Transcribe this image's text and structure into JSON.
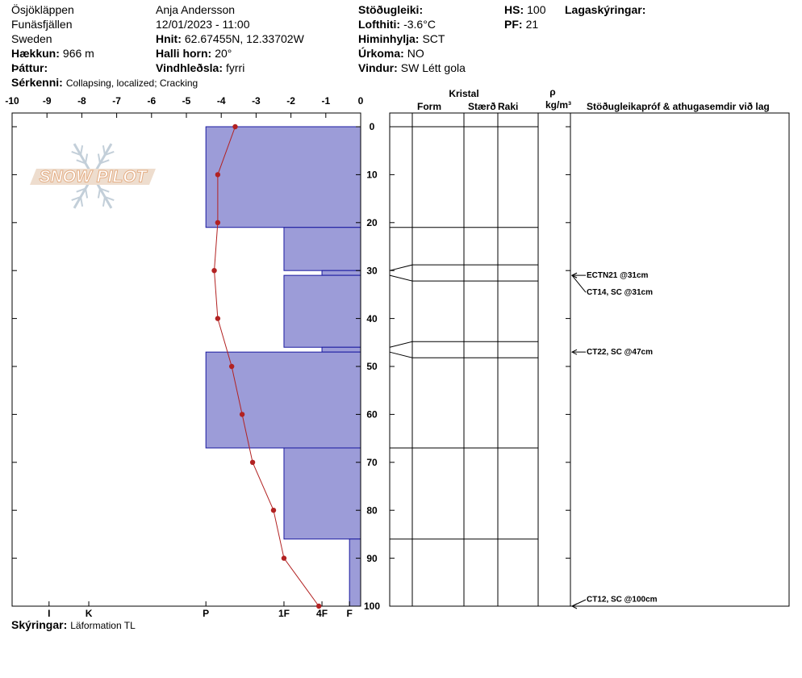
{
  "header": {
    "columns": [
      [
        {
          "value": "Ösjökläppen"
        },
        {
          "value": "Funäsfjällen"
        },
        {
          "value": "Sweden"
        },
        {
          "label": "Hækkun:",
          "value": "966 m"
        },
        {
          "label": "Þáttur:"
        }
      ],
      [
        {
          "value": "Anja Andersson"
        },
        {
          "value": "12/01/2023 - 11:00"
        },
        {
          "label": "Hnit:",
          "value": "62.67455N, 12.33702W"
        },
        {
          "label": "Halli horn:",
          "value": "20°"
        },
        {
          "label": "Vindhleðsla:",
          "value": "fyrri"
        }
      ],
      [
        {
          "label": "Stöðugleiki:"
        },
        {
          "label": "Lofthiti:",
          "value": "-3.6°C"
        },
        {
          "label": "Himinhylja:",
          "value": "SCT"
        },
        {
          "label": "Úrkoma:",
          "value": "NO"
        },
        {
          "label": "Vindur:",
          "value": "SW Létt gola"
        }
      ],
      [
        {
          "label": "HS:",
          "value": "100"
        },
        {
          "label": "PF:",
          "value": "21"
        }
      ],
      [
        {
          "label": "Lagaskýringar:"
        }
      ]
    ],
    "notes": {
      "label": "Sérkenni:",
      "value": "Collapsing, localized; Cracking"
    }
  },
  "footer": {
    "label": "Skýringar:",
    "value": "Läformation TL"
  },
  "logo": "SNOW PILOT",
  "chart_data": {
    "type": "snow-profile",
    "xlim": [
      -10,
      0
    ],
    "xticks": [
      -10,
      -9,
      -8,
      -7,
      -6,
      -5,
      -4,
      -3,
      -2,
      -1,
      0
    ],
    "ylim": [
      0,
      100
    ],
    "yticks": [
      0,
      10,
      20,
      30,
      40,
      50,
      60,
      70,
      80,
      90,
      100
    ],
    "hardness_lim": [
      0,
      100
    ],
    "hardness_ticks": [
      {
        "value": 89.4,
        "label": "I"
      },
      {
        "value": 78,
        "label": "K"
      },
      {
        "value": 44.4,
        "label": "P"
      },
      {
        "value": 22,
        "label": "1F"
      },
      {
        "value": 11.1,
        "label": "4F"
      },
      {
        "value": 3.2,
        "label": "F"
      }
    ],
    "temperature": {
      "color": "#b22222",
      "depths": [
        0,
        10,
        20,
        30,
        40,
        50,
        60,
        70,
        80,
        90,
        100
      ],
      "values": [
        -3.6,
        -4.1,
        -4.1,
        -4.2,
        -4.1,
        -3.7,
        -3.4,
        -3.1,
        -2.5,
        -2.2,
        -1.2
      ]
    },
    "layers": {
      "color": "#9c9cd8",
      "edge_color": "#1a1aa0",
      "tops": [
        0,
        21,
        30,
        31,
        46,
        47,
        67,
        86
      ],
      "bottoms": [
        21,
        30,
        31,
        46,
        47,
        67,
        86,
        100
      ],
      "hardness": [
        44.4,
        22,
        11.1,
        22,
        11.1,
        44.4,
        22,
        3.2
      ]
    },
    "crystal_header": "Kristal",
    "columns": [
      "Form",
      "Stærð",
      "Raki"
    ],
    "density_header": "ρ",
    "density_unit": "kg/m³",
    "comments_header": "Stöðugleikapróf & athugasemdir við lag",
    "tests": [
      {
        "label": "ECTN21 @31cm",
        "depth": 31
      },
      {
        "label": "CT14, SC @31cm",
        "depth": 31
      },
      {
        "label": "CT22, SC @47cm",
        "depth": 47
      },
      {
        "label": "CT12, SC @100cm",
        "depth": 100
      }
    ]
  }
}
